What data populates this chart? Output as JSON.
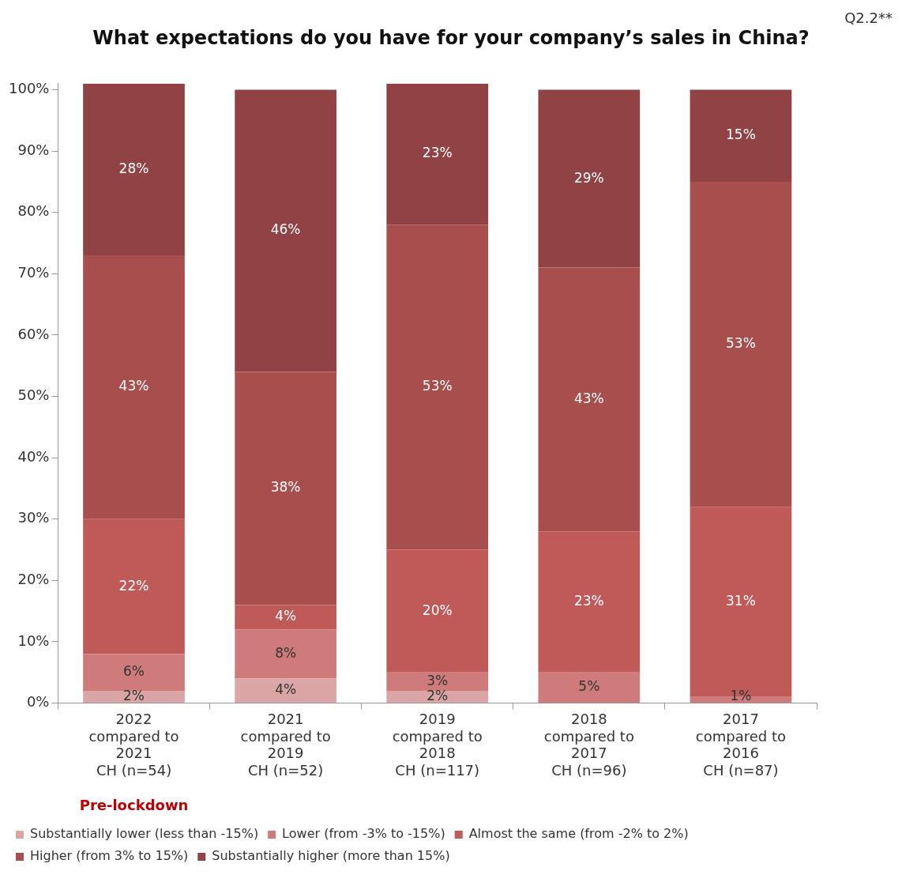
{
  "chart_data": {
    "type": "bar",
    "stacked": true,
    "title": "What expectations do you have for your company’s sales in China?",
    "annotations": [
      "Q2.2**",
      "Pre-lockdown"
    ],
    "categories": [
      "2022\ncompared to\n2021\nCH (n=54)",
      "2021\ncompared to\n2019\nCH (n=52)",
      "2019\ncompared to\n2018\nCH (n=117)",
      "2018\ncompared to\n2017\nCH (n=96)",
      "2017\ncompared to\n2016\nCH (n=87)"
    ],
    "series": [
      {
        "name": "Substantially lower (less than -15%)",
        "color": "#dba5a5",
        "values": [
          2,
          4,
          2,
          0,
          0
        ],
        "value_labels": [
          "2%",
          "4%",
          "2%",
          null,
          null
        ]
      },
      {
        "name": "Lower (from -3% to -15%)",
        "color": "#cf7b7b",
        "values": [
          6,
          8,
          3,
          5,
          1
        ],
        "value_labels": [
          "6%",
          "8%",
          "3%",
          "5%",
          "1%"
        ]
      },
      {
        "name": "Almost the same (from -2% to 2%)",
        "color": "#bf5a59",
        "values": [
          22,
          4,
          20,
          23,
          31
        ],
        "value_labels": [
          "22%",
          "4%",
          "20%",
          "23%",
          "31%"
        ]
      },
      {
        "name": "Higher (from 3% to 15%)",
        "color": "#a84f4e",
        "values": [
          43,
          38,
          53,
          43,
          53
        ],
        "value_labels": [
          "43%",
          "38%",
          "53%",
          "43%",
          "53%"
        ]
      },
      {
        "name": "Substantially higher (more than 15%)",
        "color": "#904244",
        "values": [
          28,
          46,
          23,
          29,
          15
        ],
        "value_labels": [
          "28%",
          "46%",
          "23%",
          "29%",
          "15%"
        ]
      }
    ],
    "ylim": [
      0,
      101
    ],
    "yticks": [
      {
        "value": 0,
        "label": "0%"
      },
      {
        "value": 10,
        "label": "10%"
      },
      {
        "value": 20,
        "label": "20%"
      },
      {
        "value": 30,
        "label": "30%"
      },
      {
        "value": 40,
        "label": "40%"
      },
      {
        "value": 50,
        "label": "50%"
      },
      {
        "value": 60,
        "label": "60%"
      },
      {
        "value": 70,
        "label": "70%"
      },
      {
        "value": 80,
        "label": "80%"
      },
      {
        "value": 90,
        "label": "90%"
      },
      {
        "value": 100,
        "label": "100%"
      }
    ],
    "grid": false,
    "legend": "bottom"
  }
}
